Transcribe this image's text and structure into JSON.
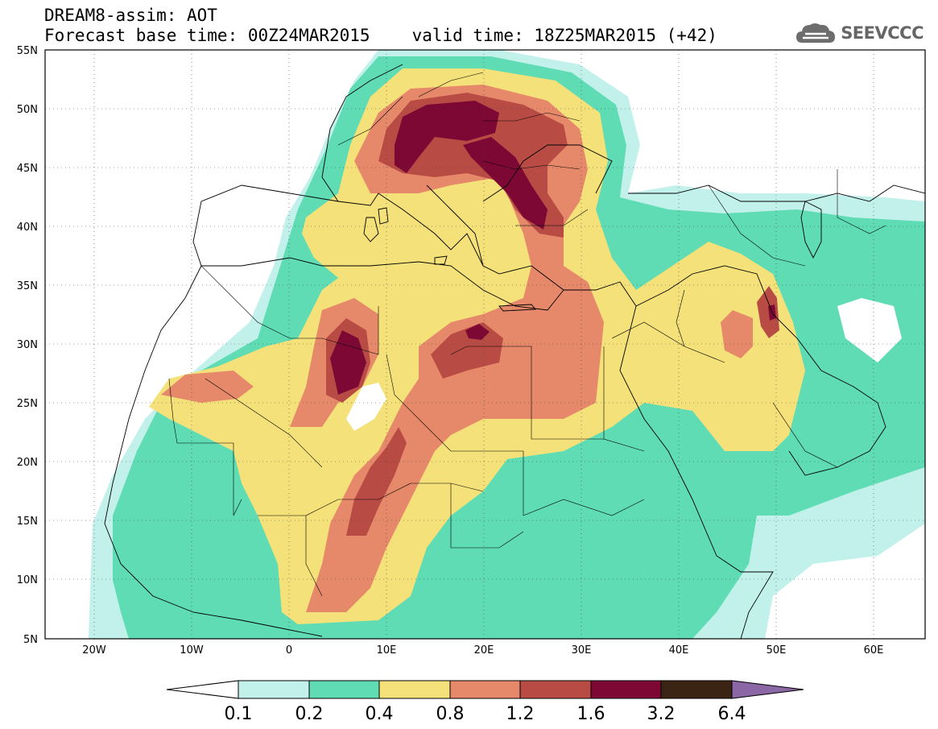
{
  "header": {
    "line1": "DREAM8-assim: AOT",
    "line2_left": "Forecast base time: 00Z24MAR2015",
    "line2_right": "valid time: 18Z25MAR2015 (+42)"
  },
  "logo": {
    "icon": "cloud-icon",
    "text": "SEEVCCC"
  },
  "map": {
    "lat_labels": [
      "55N",
      "50N",
      "45N",
      "40N",
      "35N",
      "30N",
      "25N",
      "20N",
      "15N",
      "10N",
      "5N"
    ],
    "lon_labels": [
      "20W",
      "10W",
      "0",
      "10E",
      "20E",
      "30E",
      "40E",
      "50E",
      "60E"
    ]
  },
  "colorbar": {
    "levels": [
      "0.1",
      "0.2",
      "0.4",
      "0.8",
      "1.2",
      "1.6",
      "3.2",
      "6.4"
    ],
    "colors": [
      "#ffffff",
      "#c2f1ec",
      "#5fdcb4",
      "#f5e179",
      "#e6896a",
      "#b84c45",
      "#7e0834",
      "#3b2414",
      "#8b68a5"
    ]
  }
}
